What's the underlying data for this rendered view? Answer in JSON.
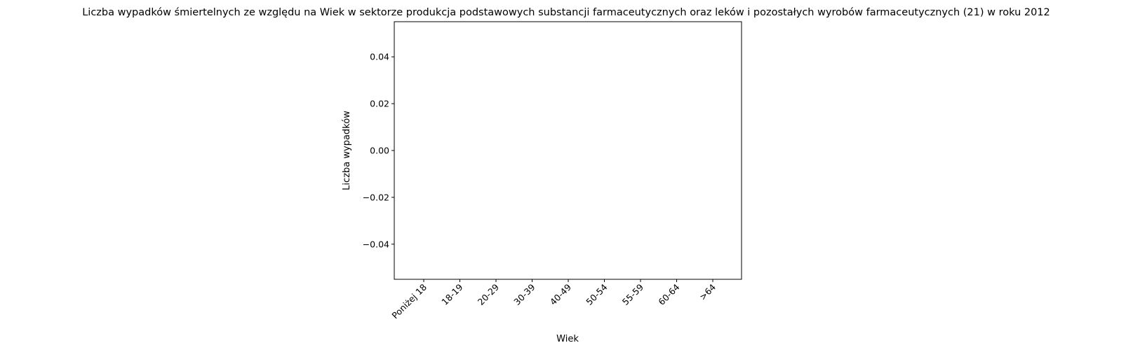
{
  "chart_data": {
    "type": "bar",
    "title": "Liczba wypadków śmiertelnych ze względu na Wiek w sektorze produkcja podstawowych substancji farmaceutycznych oraz leków i pozostałych wyrobów farmaceutycznych (21)  w roku 2012",
    "xlabel": "Wiek",
    "ylabel": "Liczba wypadków",
    "categories": [
      "Poniżej 18",
      "18-19",
      "20-29",
      "30-39",
      "40-49",
      "50-54",
      "55-59",
      "60-64",
      ">64"
    ],
    "values": [
      0,
      0,
      0,
      0,
      0,
      0,
      0,
      0,
      0
    ],
    "ylim": [
      -0.055,
      0.055
    ],
    "yticks": [
      0.04,
      0.02,
      0.0,
      -0.02,
      -0.04
    ],
    "ytick_labels": [
      "0.04",
      "0.02",
      "0.00",
      "−0.02",
      "−0.04"
    ],
    "xtick_rotation": 45,
    "grid": false,
    "legend": "none",
    "bar_color": "#1f77b4"
  }
}
